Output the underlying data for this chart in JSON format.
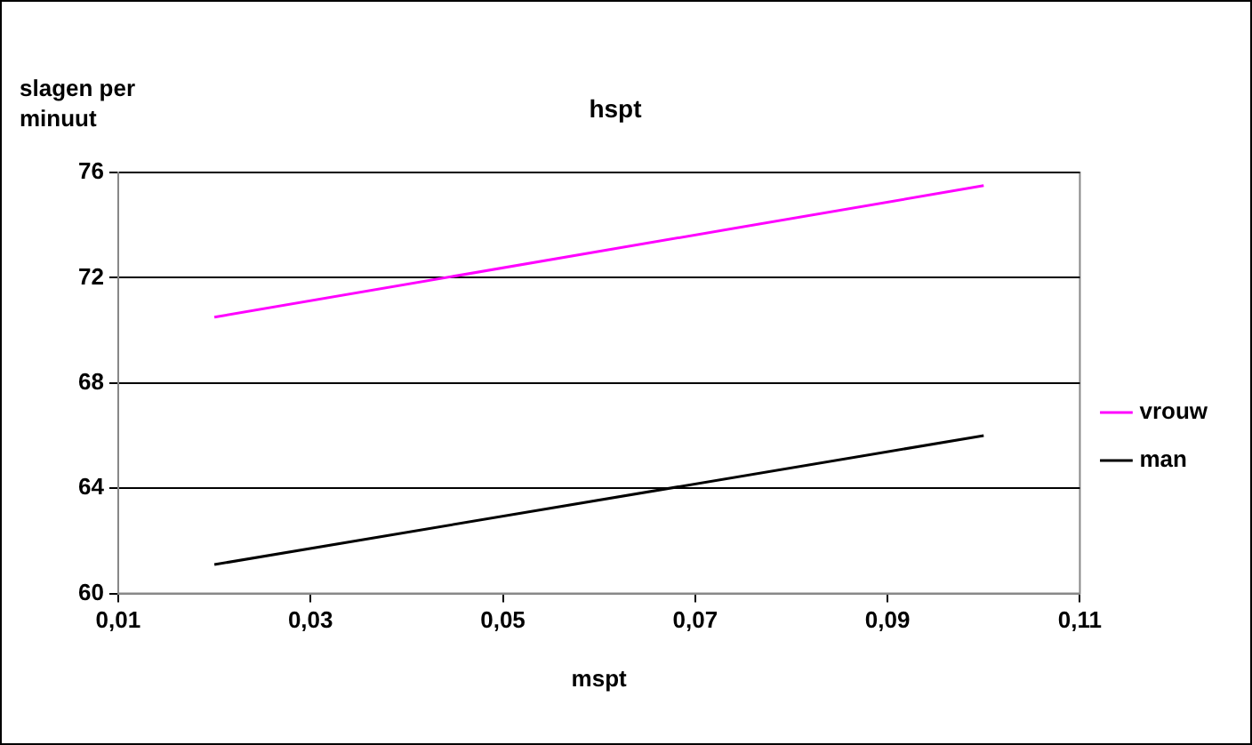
{
  "chart_data": {
    "type": "line",
    "title": "hspt",
    "xlabel": "mspt",
    "ylabel": "slagen per minuut",
    "x": [
      0.02,
      0.1
    ],
    "series": [
      {
        "name": "vrouw",
        "color": "#ff00ff",
        "values": [
          70.5,
          75.5
        ]
      },
      {
        "name": "man",
        "color": "#000000",
        "values": [
          61.1,
          66.0
        ]
      }
    ],
    "xlim": [
      0.01,
      0.11
    ],
    "xticks": [
      {
        "value": 0.01,
        "label": "0,01"
      },
      {
        "value": 0.03,
        "label": "0,03"
      },
      {
        "value": 0.05,
        "label": "0,05"
      },
      {
        "value": 0.07,
        "label": "0,07"
      },
      {
        "value": 0.09,
        "label": "0,09"
      },
      {
        "value": 0.11,
        "label": "0,11"
      }
    ],
    "ylim": [
      60,
      76
    ],
    "yticks": [
      60,
      64,
      68,
      72,
      76
    ],
    "grid": "y",
    "legend": "right",
    "marker": "none",
    "line_style": "solid"
  }
}
